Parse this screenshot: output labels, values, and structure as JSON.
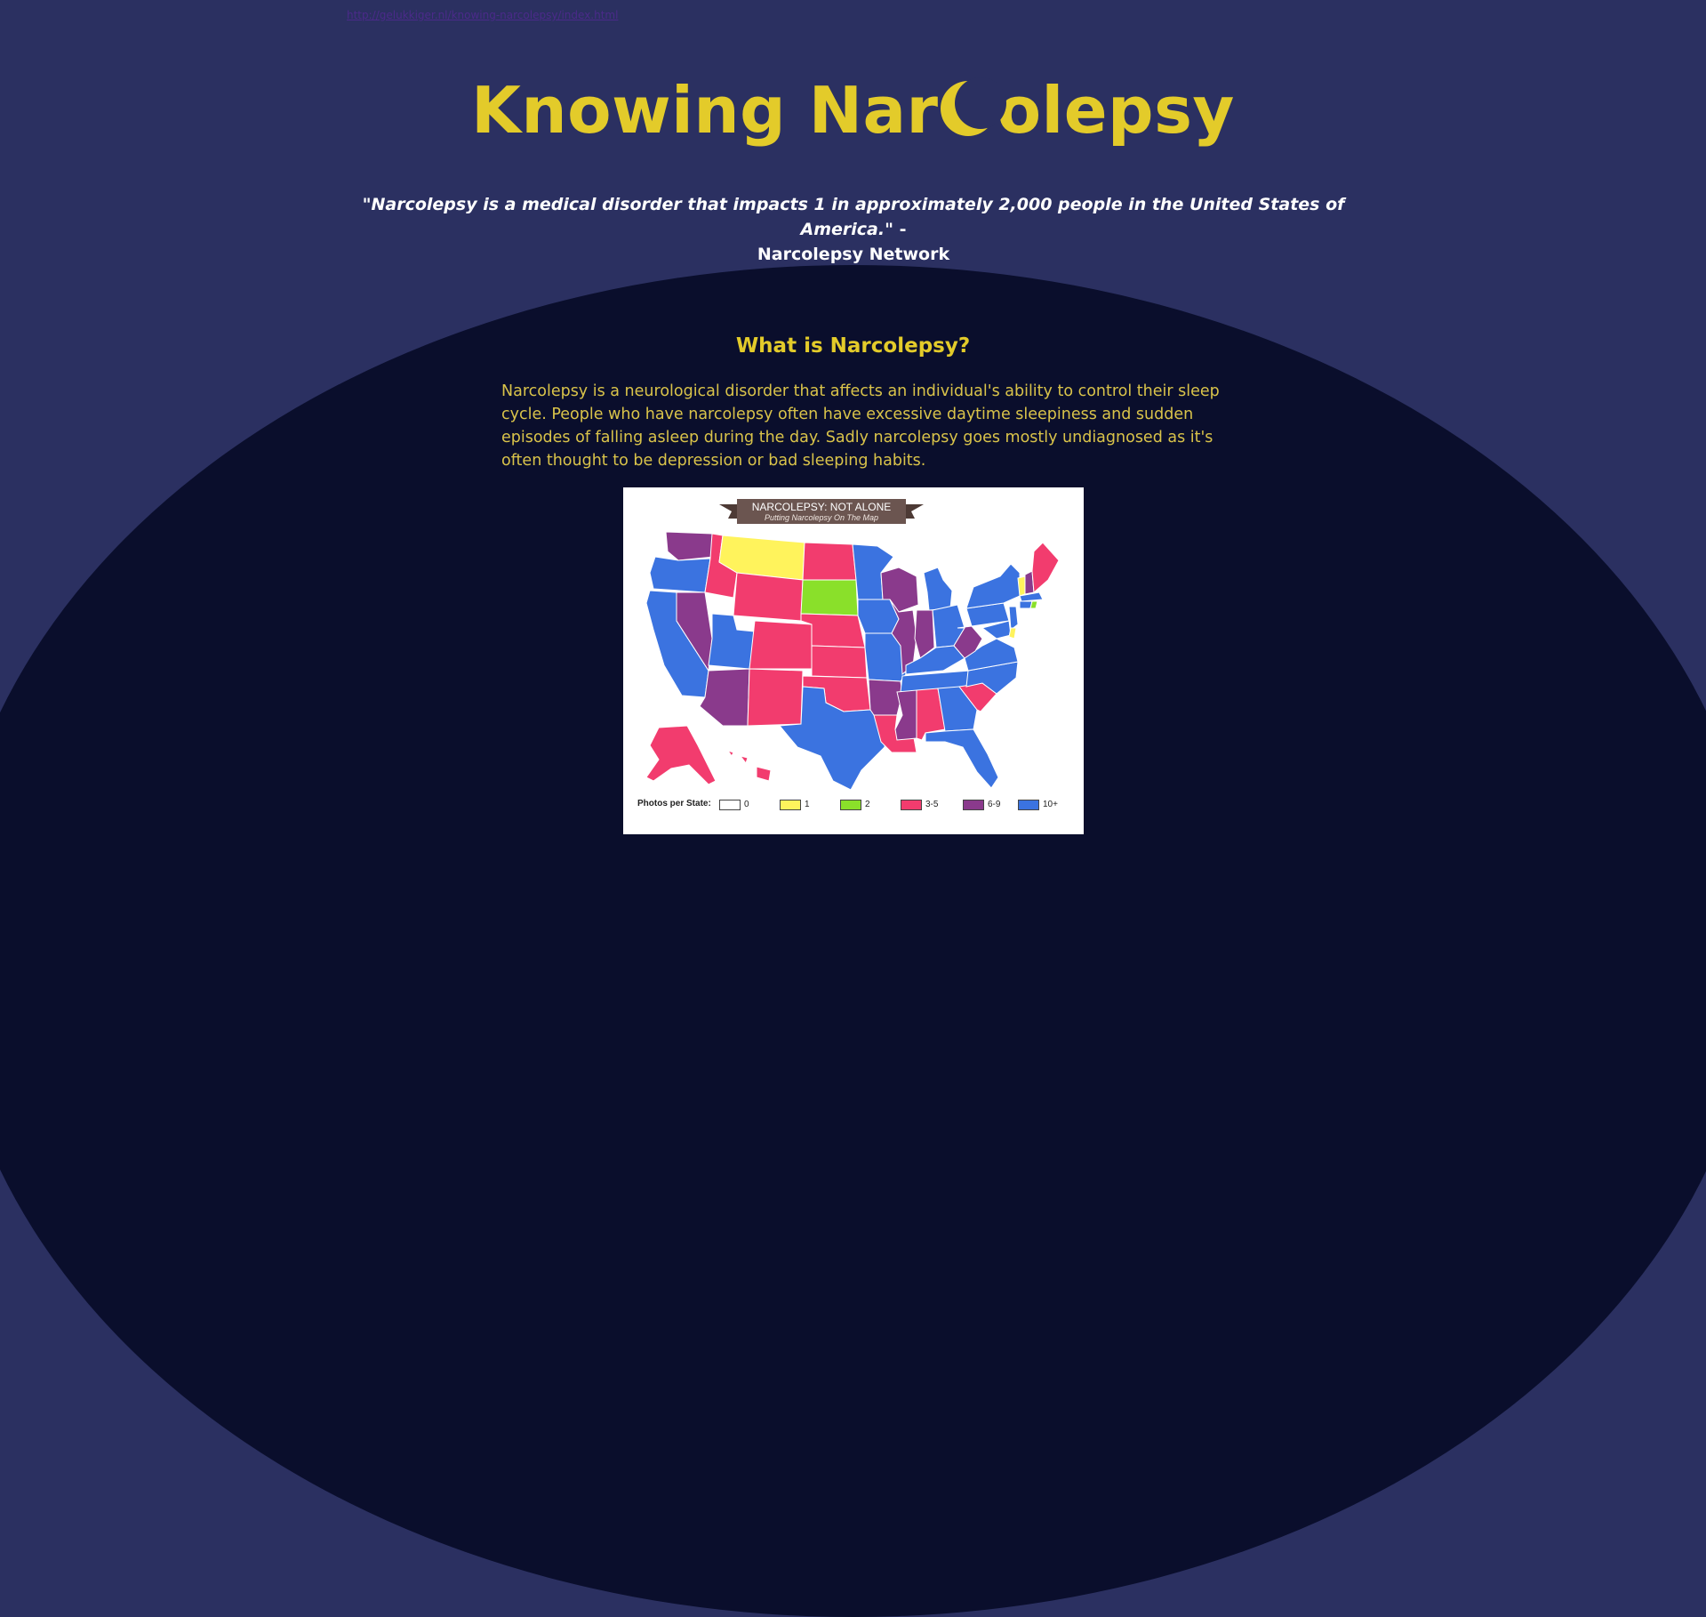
{
  "top_link": {
    "text": "http://gelukkiger.nl/knowing-narcolepsy/index.html"
  },
  "title": {
    "part1": "Knowing Nar",
    "moon_icon": "crescent-moon-icon",
    "part2": "olepsy"
  },
  "quote": {
    "text": "\"Narcolepsy is a medical disorder that impacts 1 in approximately 2,000 people in the United States of America.\"",
    "dash": " - ",
    "source": "Narcolepsy Network"
  },
  "section": {
    "heading": "What is Narcolepsy?",
    "body": "Narcolepsy is a neurological disorder that affects an individual's ability to control their sleep cycle. People who have narcolepsy often have excessive daytime sleepiness and sudden episodes of falling asleep during the day. Sadly narcolepsy goes mostly undiagnosed as it's often thought to be depression or bad sleeping habits."
  },
  "map": {
    "banner_title": "NARCOLEPSY: NOT ALONE",
    "banner_subtitle": "Putting Narcolepsy On The Map",
    "legend_title": "Photos per State:",
    "legend": [
      {
        "label": "0",
        "color": "#ffffff"
      },
      {
        "label": "1",
        "color": "#fff35c"
      },
      {
        "label": "2",
        "color": "#8ae02a"
      },
      {
        "label": "3-5",
        "color": "#f23c6e"
      },
      {
        "label": "6-9",
        "color": "#8a3a8c"
      },
      {
        "label": "10+",
        "color": "#3b73e0"
      }
    ],
    "colors": {
      "blue": "#3b73e0",
      "pink": "#f23c6e",
      "purple": "#8a3a8c",
      "yellow": "#fff35c",
      "green": "#8ae02a"
    }
  },
  "colors": {
    "background": "#2b3061",
    "dome": "#0a0e2c",
    "accent": "#e3cb2a",
    "text_light": "#ffffff"
  }
}
